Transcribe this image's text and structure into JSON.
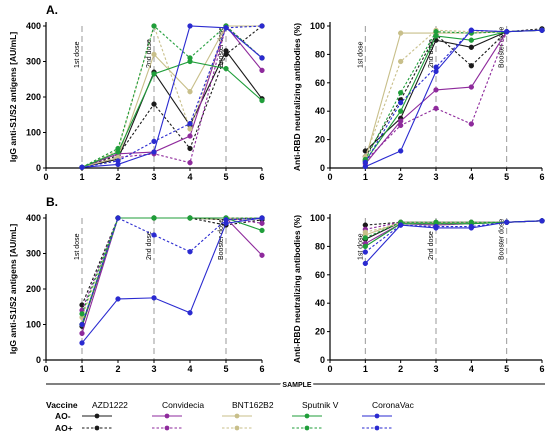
{
  "figure": {
    "shared_xlabel": "SAMPLE",
    "legend": {
      "title": "Vaccine",
      "rows": [
        "AO-",
        "AO+"
      ],
      "vaccines": [
        {
          "name": "AZD1222",
          "color": "#1a1a1a"
        },
        {
          "name": "Convidecia",
          "color": "#8e2a9c"
        },
        {
          "name": "BNT162B2",
          "color": "#c8bf8a"
        },
        {
          "name": "Sputnik V",
          "color": "#1f9e3a"
        },
        {
          "name": "CoronaVac",
          "color": "#2a2ad0"
        }
      ]
    }
  },
  "chart_data": [
    {
      "id": "A-left",
      "type": "line",
      "panel_label": "A.",
      "title": "",
      "xlabel": "",
      "ylabel": "IgG anti-S1/S2 antigens [AU/mL]",
      "xlim": [
        0,
        6
      ],
      "ylim": [
        0,
        400
      ],
      "xticks": [
        0,
        1,
        2,
        3,
        4,
        5,
        6
      ],
      "yticks": [
        0,
        100,
        200,
        300,
        400
      ],
      "vlines": [
        {
          "x": 1,
          "label": "1st dose"
        },
        {
          "x": 3,
          "label": "2nd dose"
        },
        {
          "x": 5,
          "label": "Booster dose"
        }
      ],
      "grid": false,
      "x": [
        1,
        2,
        3,
        4,
        5,
        6
      ],
      "series": [
        {
          "vaccine": "AZD1222",
          "group": "AO-",
          "values": [
            2,
            25,
            270,
            120,
            330,
            195
          ]
        },
        {
          "vaccine": "AZD1222",
          "group": "AO+",
          "values": [
            2,
            35,
            180,
            55,
            320,
            400
          ]
        },
        {
          "vaccine": "Convidecia",
          "group": "AO-",
          "values": [
            2,
            40,
            45,
            90,
            400,
            275
          ]
        },
        {
          "vaccine": "Convidecia",
          "group": "AO+",
          "values": [
            2,
            30,
            40,
            15,
            400,
            310
          ]
        },
        {
          "vaccine": "BNT162B2",
          "group": "AO-",
          "values": [
            2,
            30,
            320,
            215,
            400,
            400
          ]
        },
        {
          "vaccine": "BNT162B2",
          "group": "AO+",
          "values": [
            2,
            50,
            400,
            110,
            400,
            400
          ]
        },
        {
          "vaccine": "Sputnik V",
          "group": "AO-",
          "values": [
            2,
            45,
            265,
            300,
            280,
            190
          ]
        },
        {
          "vaccine": "Sputnik V",
          "group": "AO+",
          "values": [
            2,
            55,
            400,
            310,
            400,
            310
          ]
        },
        {
          "vaccine": "CoronaVac",
          "group": "AO-",
          "values": [
            2,
            10,
            45,
            400,
            395,
            310
          ]
        },
        {
          "vaccine": "CoronaVac",
          "group": "AO+",
          "values": [
            2,
            20,
            75,
            125,
            395,
            400
          ]
        }
      ]
    },
    {
      "id": "A-right",
      "type": "line",
      "title": "",
      "xlabel": "",
      "ylabel": "Anti-RBD neutralizing antibodies (%)",
      "xlim": [
        0,
        6
      ],
      "ylim": [
        0,
        100
      ],
      "xticks": [
        0,
        1,
        2,
        3,
        4,
        5,
        6
      ],
      "yticks": [
        0,
        20,
        40,
        60,
        80,
        100
      ],
      "vlines": [
        {
          "x": 1,
          "label": "1st dose"
        },
        {
          "x": 3,
          "label": "2nd dose"
        },
        {
          "x": 5,
          "label": "Booster dose"
        }
      ],
      "grid": false,
      "x": [
        1,
        2,
        3,
        4,
        5,
        6
      ],
      "series": [
        {
          "vaccine": "AZD1222",
          "group": "AO-",
          "values": [
            12,
            35,
            90,
            85,
            96,
            97
          ]
        },
        {
          "vaccine": "AZD1222",
          "group": "AO+",
          "values": [
            8,
            48,
            94,
            72,
            96,
            98
          ]
        },
        {
          "vaccine": "Convidecia",
          "group": "AO-",
          "values": [
            3,
            33,
            55,
            57,
            96,
            97
          ]
        },
        {
          "vaccine": "Convidecia",
          "group": "AO+",
          "values": [
            5,
            30,
            42,
            31,
            96,
            97
          ]
        },
        {
          "vaccine": "BNT162B2",
          "group": "AO-",
          "values": [
            6,
            95,
            95,
            95,
            96,
            97
          ]
        },
        {
          "vaccine": "BNT162B2",
          "group": "AO+",
          "values": [
            8,
            75,
            97,
            96,
            96,
            97
          ]
        },
        {
          "vaccine": "Sputnik V",
          "group": "AO-",
          "values": [
            5,
            40,
            93,
            90,
            96,
            97
          ]
        },
        {
          "vaccine": "Sputnik V",
          "group": "AO+",
          "values": [
            6,
            53,
            96,
            95,
            96,
            97
          ]
        },
        {
          "vaccine": "CoronaVac",
          "group": "AO-",
          "values": [
            1,
            12,
            68,
            97,
            96,
            97
          ]
        },
        {
          "vaccine": "CoronaVac",
          "group": "AO+",
          "values": [
            4,
            46,
            71,
            97,
            96,
            97
          ]
        }
      ]
    },
    {
      "id": "B-left",
      "type": "line",
      "panel_label": "B.",
      "title": "",
      "xlabel": "",
      "ylabel": "IgG anti-S1/S2 antigens [AU/mL]",
      "xlim": [
        0,
        6
      ],
      "ylim": [
        0,
        400
      ],
      "xticks": [
        0,
        1,
        2,
        3,
        4,
        5,
        6
      ],
      "yticks": [
        0,
        100,
        200,
        300,
        400
      ],
      "vlines": [
        {
          "x": 1,
          "label": "1st dose"
        },
        {
          "x": 3,
          "label": "2nd dose"
        },
        {
          "x": 5,
          "label": "Booster dose"
        }
      ],
      "grid": false,
      "x": [
        1,
        2,
        3,
        4,
        5,
        6
      ],
      "series": [
        {
          "vaccine": "AZD1222",
          "group": "AO-",
          "values": [
            95,
            400,
            400,
            400,
            395,
            400
          ]
        },
        {
          "vaccine": "AZD1222",
          "group": "AO+",
          "values": [
            155,
            400,
            400,
            400,
            380,
            395
          ]
        },
        {
          "vaccine": "Convidecia",
          "group": "AO-",
          "values": [
            75,
            400,
            400,
            400,
            400,
            295
          ]
        },
        {
          "vaccine": "Convidecia",
          "group": "AO+",
          "values": [
            140,
            400,
            400,
            400,
            400,
            385
          ]
        },
        {
          "vaccine": "BNT162B2",
          "group": "AO-",
          "values": [
            100,
            400,
            400,
            400,
            400,
            400
          ]
        },
        {
          "vaccine": "BNT162B2",
          "group": "AO+",
          "values": [
            120,
            400,
            400,
            400,
            395,
            400
          ]
        },
        {
          "vaccine": "Sputnik V",
          "group": "AO-",
          "values": [
            100,
            400,
            400,
            400,
            400,
            365
          ]
        },
        {
          "vaccine": "Sputnik V",
          "group": "AO+",
          "values": [
            130,
            400,
            400,
            400,
            400,
            400
          ]
        },
        {
          "vaccine": "CoronaVac",
          "group": "AO-",
          "values": [
            48,
            172,
            175,
            133,
            385,
            400
          ]
        },
        {
          "vaccine": "CoronaVac",
          "group": "AO+",
          "values": [
            100,
            400,
            352,
            305,
            395,
            400
          ]
        }
      ]
    },
    {
      "id": "B-right",
      "type": "line",
      "title": "",
      "xlabel": "",
      "ylabel": "Anti-RBD neutralizing antibodies (%)",
      "xlim": [
        0,
        6
      ],
      "ylim": [
        0,
        100
      ],
      "xticks": [
        0,
        1,
        2,
        3,
        4,
        5,
        6
      ],
      "yticks": [
        0,
        20,
        40,
        60,
        80,
        100
      ],
      "vlines": [
        {
          "x": 1,
          "label": "1st dose"
        },
        {
          "x": 3,
          "label": "2nd dose"
        },
        {
          "x": 5,
          "label": "Booster dose"
        }
      ],
      "grid": false,
      "x": [
        1,
        2,
        3,
        4,
        5,
        6
      ],
      "series": [
        {
          "vaccine": "AZD1222",
          "group": "AO-",
          "values": [
            85,
            97,
            97,
            97,
            97,
            98
          ]
        },
        {
          "vaccine": "AZD1222",
          "group": "AO+",
          "values": [
            95,
            97,
            97,
            97,
            97,
            98
          ]
        },
        {
          "vaccine": "Convidecia",
          "group": "AO-",
          "values": [
            82,
            96,
            95,
            96,
            97,
            98
          ]
        },
        {
          "vaccine": "Convidecia",
          "group": "AO+",
          "values": [
            92,
            97,
            96,
            97,
            97,
            98
          ]
        },
        {
          "vaccine": "BNT162B2",
          "group": "AO-",
          "values": [
            88,
            97,
            97,
            97,
            97,
            98
          ]
        },
        {
          "vaccine": "BNT162B2",
          "group": "AO+",
          "values": [
            90,
            96,
            96,
            96,
            97,
            98
          ]
        },
        {
          "vaccine": "Sputnik V",
          "group": "AO-",
          "values": [
            80,
            96,
            96,
            96,
            97,
            98
          ]
        },
        {
          "vaccine": "Sputnik V",
          "group": "AO+",
          "values": [
            86,
            97,
            97,
            97,
            97,
            98
          ]
        },
        {
          "vaccine": "CoronaVac",
          "group": "AO-",
          "values": [
            68,
            95,
            93,
            93,
            97,
            98
          ]
        },
        {
          "vaccine": "CoronaVac",
          "group": "AO+",
          "values": [
            76,
            95,
            94,
            94,
            97,
            98
          ]
        }
      ]
    }
  ]
}
